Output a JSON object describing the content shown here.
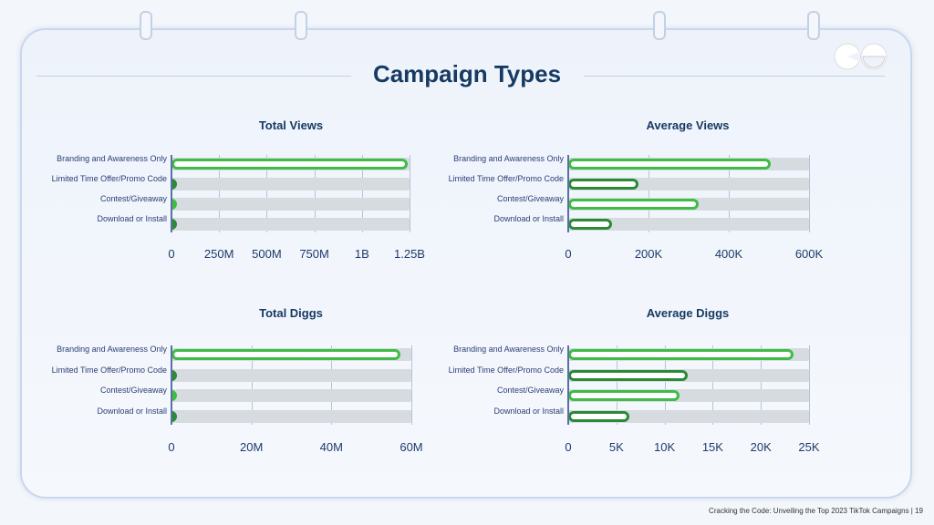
{
  "slide": {
    "title": "Campaign Types",
    "footer": "Cracking the Code: Unveiling the Top 2023 TikTok Campaigns | 19",
    "logo_icon": "eyes-logo-icon"
  },
  "colors": {
    "primary_green": "#3dbd45",
    "dark_green": "#2b8a36",
    "track": "#d6dbe0",
    "title": "#173a63"
  },
  "chart_data": [
    {
      "type": "bar",
      "orientation": "horizontal",
      "title": "Total Views",
      "categories": [
        "Branding and Awareness Only",
        "Limited Time Offer/Promo Code",
        "Contest/Giveaway",
        "Download or Install"
      ],
      "values": [
        1240000000,
        15000000,
        3000000,
        3000000
      ],
      "xlim": [
        0,
        1250000000
      ],
      "xticks": [
        0,
        250000000,
        500000000,
        750000000,
        1000000000,
        1250000000
      ],
      "xtick_labels": [
        "0",
        "250M",
        "500M",
        "750M",
        "1B",
        "1.25B"
      ],
      "grid": true
    },
    {
      "type": "bar",
      "orientation": "horizontal",
      "title": "Average Views",
      "categories": [
        "Branding and Awareness Only",
        "Limited Time Offer/Promo Code",
        "Contest/Giveaway",
        "Download or Install"
      ],
      "values": [
        505000,
        175000,
        325000,
        109000
      ],
      "xlim": [
        0,
        600000
      ],
      "xticks": [
        0,
        200000,
        400000,
        600000
      ],
      "xtick_labels": [
        "0",
        "200K",
        "400K",
        "600K"
      ],
      "grid": true
    },
    {
      "type": "bar",
      "orientation": "horizontal",
      "title": "Total Diggs",
      "categories": [
        "Branding and Awareness Only",
        "Limited Time Offer/Promo Code",
        "Contest/Giveaway",
        "Download or Install"
      ],
      "values": [
        57300000,
        800000,
        200000,
        300000
      ],
      "xlim": [
        0,
        60000000
      ],
      "xticks": [
        0,
        20000000,
        40000000,
        60000000
      ],
      "xtick_labels": [
        "0",
        "20M",
        "40M",
        "60M"
      ],
      "grid": true
    },
    {
      "type": "bar",
      "orientation": "horizontal",
      "title": "Average Diggs",
      "categories": [
        "Branding and Awareness Only",
        "Limited Time Offer/Promo Code",
        "Contest/Giveaway",
        "Download or Install"
      ],
      "values": [
        23400,
        12400,
        11600,
        6300
      ],
      "xlim": [
        0,
        25000
      ],
      "xticks": [
        0,
        5000,
        10000,
        15000,
        20000,
        25000
      ],
      "xtick_labels": [
        "0",
        "5K",
        "10K",
        "15K",
        "20K",
        "25K"
      ],
      "grid": true
    }
  ]
}
